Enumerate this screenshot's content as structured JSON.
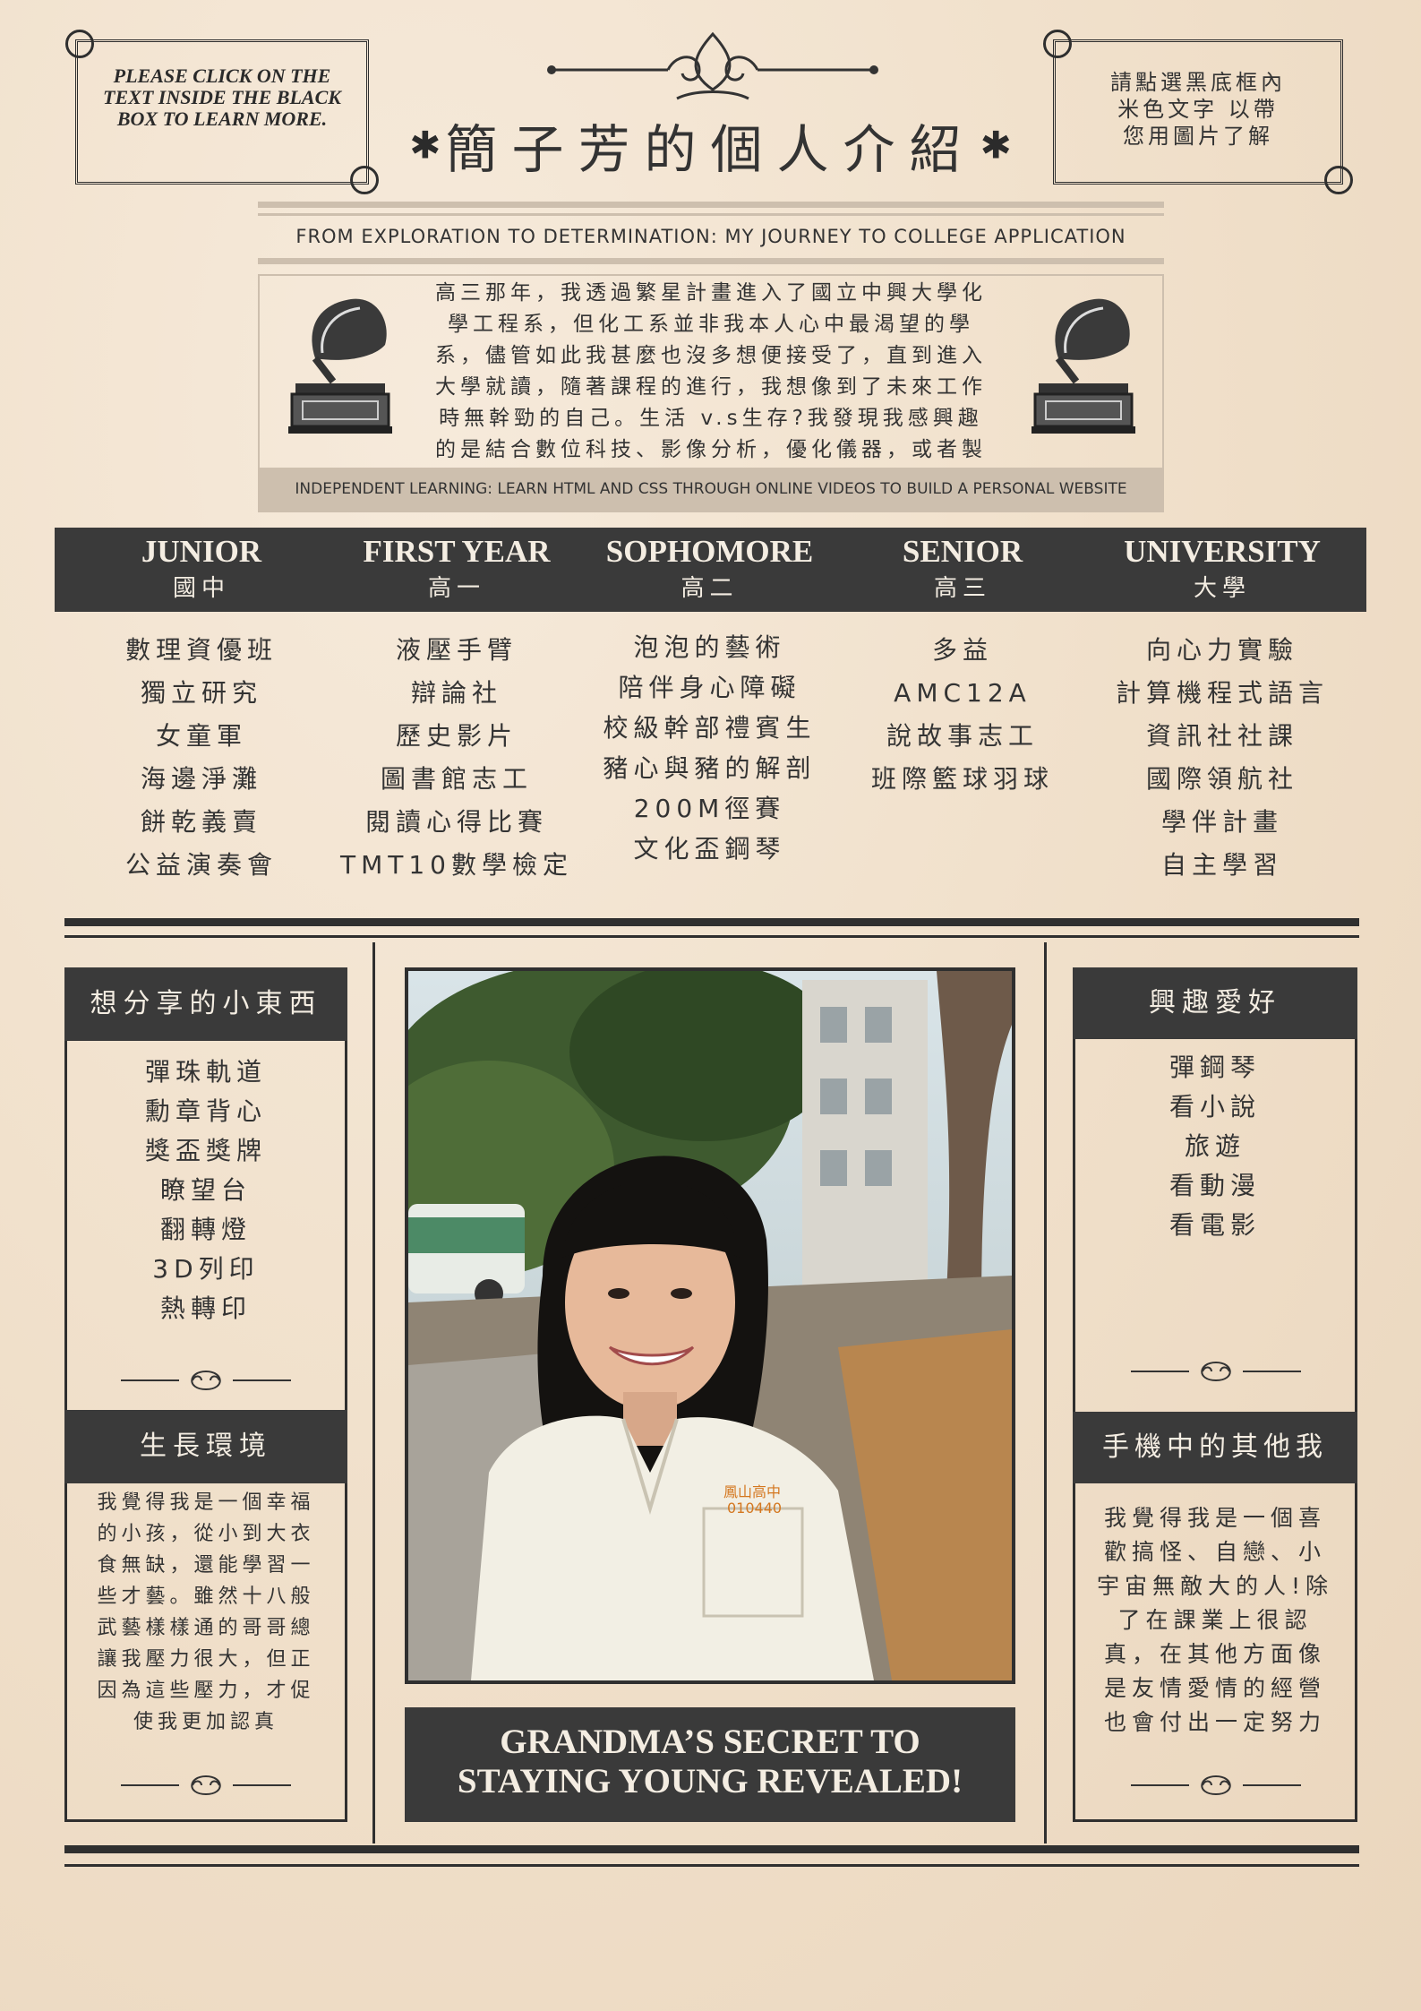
{
  "header": {
    "left_note": "PLEASE CLICK ON THE TEXT INSIDE THE BLACK BOX TO LEARN MORE.",
    "right_note_lines": [
      "請點選黑底框內",
      "米色文字 以帶",
      "您用圖片了解"
    ],
    "title": "簡子芳的個人介紹",
    "title_star": "✱",
    "subtitle": "FROM EXPLORATION TO DETERMINATION: MY JOURNEY TO COLLEGE APPLICATION"
  },
  "intro": {
    "paragraph": "高三那年，我透過繁星計畫進入了國立中興大學化學工程系，但化工系並非我本人心中最渴望的學系，儘管如此我甚麼也沒多想便接受了，直到進入大學就讀，隨著課程的進行，我想像到了未來工作時無幹勁的自己。生活 v.s生存?我發現我感興趣的是結合數位科技、影像分析，優化儀器，或者製作出協助疾病治療與判斷的儀器。於是，開啟了我的重考之旅，為自己的未來賣單!",
    "footer": "INDEPENDENT LEARNING: LEARN HTML AND CSS THROUGH ONLINE VIDEOS TO BUILD A PERSONAL WEBSITE"
  },
  "timeline": {
    "columns": [
      {
        "en": "JUNIOR",
        "zh": "國中",
        "items": [
          "數理資優班",
          "獨立研究",
          "女童軍",
          "海邊淨灘",
          "餅乾義賣",
          "公益演奏會"
        ]
      },
      {
        "en": "FIRST YEAR",
        "zh": "高一",
        "items": [
          "液壓手臂",
          "辯論社",
          "歷史影片",
          "圖書館志工",
          "閱讀心得比賽",
          "TMT10數學檢定"
        ]
      },
      {
        "en": "SOPHOMORE",
        "zh": "高二",
        "items": [
          "泡泡的藝術",
          "陪伴身心障礙",
          "校級幹部禮賓生",
          "豬心與豬的解剖",
          "200M徑賽",
          "文化盃鋼琴"
        ]
      },
      {
        "en": "SENIOR",
        "zh": "高三",
        "items": [
          "多益",
          "AMC12A",
          "說故事志工",
          "班際籃球羽球"
        ]
      },
      {
        "en": "UNIVERSITY",
        "zh": "大學",
        "items": [
          "向心力實驗",
          "計算機程式語言",
          "資訊社社課",
          "國際領航社",
          "學伴計畫",
          "自主學習"
        ]
      }
    ]
  },
  "left_panel": {
    "share_title": "想分享的小東西",
    "share_items": [
      "彈珠軌道",
      "勳章背心",
      "獎盃獎牌",
      "瞭望台",
      "翻轉燈",
      "3D列印",
      "熱轉印"
    ],
    "env_title": "生長環境",
    "env_text": "我覺得我是一個幸福的小孩，從小到大衣食無缺，還能學習一些才藝。雖然十八般武藝樣樣通的哥哥總讓我壓力很大，但正因為這些壓力，才促使我更加認真"
  },
  "right_panel": {
    "hobby_title": "興趣愛好",
    "hobby_items": [
      "彈鋼琴",
      "看小說",
      "旅遊",
      "看動漫",
      "看電影"
    ],
    "phone_title": "手機中的其他我",
    "phone_text": "我覺得我是一個喜歡搞怪、自戀、小宇宙無敵大的人!除了在課業上很認真，在其他方面像是友情愛情的經營也會付出一定努力"
  },
  "photo": {
    "shirt_label": "鳳山高中",
    "shirt_number": "010440"
  },
  "caption": {
    "line1": "GRANDMA’S SECRET TO",
    "line2": "STAYING YOUNG REVEALED!"
  },
  "colors": {
    "paper": "#f1e1cc",
    "dark_box": "#3a3a3a",
    "box_text": "#f4ede2",
    "rule": "#cdbfae"
  }
}
